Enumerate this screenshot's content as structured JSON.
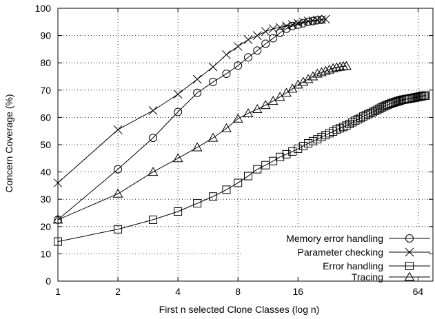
{
  "chart_data": {
    "type": "line",
    "xlabel": "First n selected Clone Classes (log n)",
    "ylabel": "Concern Coverage (%)",
    "xscale": "log2",
    "xlim": [
      1,
      76
    ],
    "ylim": [
      0,
      100
    ],
    "xticks": [
      1,
      2,
      4,
      8,
      16,
      64
    ],
    "xtick_labels": [
      "1",
      "2",
      "4",
      "8",
      "16",
      "64"
    ],
    "yticks": [
      0,
      10,
      20,
      30,
      40,
      50,
      60,
      70,
      80,
      90,
      100
    ],
    "ytick_labels": [
      "0",
      "10",
      "20",
      "30",
      "40",
      "50",
      "60",
      "70",
      "80",
      "90",
      "100"
    ],
    "grid": true,
    "legend_position": "bottom-right",
    "series": [
      {
        "name": "Memory error handling",
        "marker": "circle",
        "x": [
          1,
          2,
          3,
          4,
          5,
          6,
          7,
          8,
          9,
          10,
          11,
          12,
          13,
          14,
          15,
          16,
          17,
          18,
          19,
          20,
          21
        ],
        "y": [
          22.5,
          41,
          52.5,
          62,
          69,
          73,
          76,
          79,
          82,
          84.5,
          87,
          89,
          91,
          92.5,
          93.5,
          94,
          94.5,
          95,
          95.3,
          95.6,
          95.8
        ]
      },
      {
        "name": "Parameter checking",
        "marker": "cross",
        "x": [
          1,
          2,
          3,
          4,
          5,
          6,
          7,
          8,
          9,
          10,
          11,
          12,
          13,
          14,
          15,
          16,
          17,
          18,
          19,
          20,
          21,
          22
        ],
        "y": [
          36,
          55.5,
          62.5,
          68.5,
          74,
          78.5,
          83,
          86,
          88.5,
          90,
          91.5,
          92.5,
          93,
          93.5,
          94,
          94.5,
          95,
          95.3,
          95.5,
          95.7,
          95.8,
          96
        ]
      },
      {
        "name": "Error handling",
        "marker": "square",
        "x": [
          1,
          2,
          3,
          4,
          5,
          6,
          7,
          8,
          9,
          10,
          11,
          12,
          13,
          14,
          15,
          16,
          17,
          18,
          19,
          20,
          21,
          22,
          23,
          24,
          25,
          26,
          27,
          28,
          29,
          30,
          31,
          32,
          33,
          34,
          35,
          36,
          37,
          38,
          39,
          40,
          41,
          42,
          43,
          44,
          45,
          46,
          47,
          48,
          49,
          50,
          51,
          52,
          53,
          54,
          55,
          56,
          57,
          58,
          59,
          60,
          61,
          62,
          63,
          64,
          65,
          66,
          67,
          68,
          69,
          70
        ],
        "y": [
          14.5,
          19,
          22.5,
          25.5,
          28.5,
          31,
          33.5,
          36,
          38.5,
          41,
          42.5,
          44,
          45.5,
          46.5,
          47.5,
          48.5,
          49.5,
          50.5,
          51.3,
          52,
          52.8,
          53.5,
          54.2,
          54.8,
          55.5,
          56,
          56.5,
          57,
          57.6,
          58.2,
          58.8,
          59.3,
          59.8,
          60.3,
          60.8,
          61.2,
          61.6,
          62,
          62.4,
          62.8,
          63.2,
          63.6,
          64,
          64.3,
          64.6,
          64.9,
          65.2,
          65.4,
          65.6,
          65.8,
          66,
          66.2,
          66.4,
          66.5,
          66.6,
          66.7,
          66.8,
          66.9,
          67,
          67.1,
          67.2,
          67.3,
          67.4,
          67.5,
          67.6,
          67.7,
          67.8,
          67.9,
          68,
          68
        ]
      },
      {
        "name": "Tracing",
        "marker": "triangle",
        "x": [
          1,
          2,
          3,
          4,
          5,
          6,
          7,
          8,
          9,
          10,
          11,
          12,
          13,
          14,
          15,
          16,
          17,
          18,
          19,
          20,
          21,
          22,
          23,
          24,
          25,
          26,
          27,
          28
        ],
        "y": [
          22.5,
          32,
          40,
          45,
          49,
          52.5,
          56,
          59.5,
          61.5,
          63,
          64.5,
          66,
          67.5,
          69,
          70.5,
          72,
          73,
          74,
          75,
          76,
          76.5,
          77,
          77.5,
          78,
          78.3,
          78.5,
          78.7,
          78.8
        ]
      }
    ]
  }
}
